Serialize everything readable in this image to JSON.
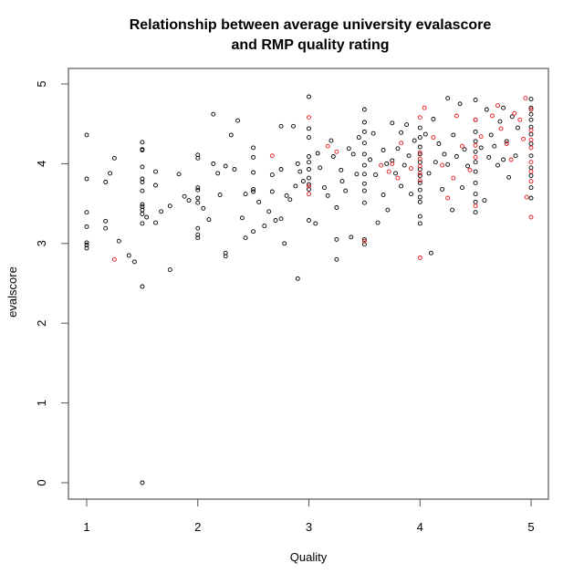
{
  "chart_data": {
    "type": "scatter",
    "title": "Relationship between average university evalascore\nand RMP quality rating",
    "title_lines": [
      "Relationship between average university evalascore",
      "and RMP quality rating"
    ],
    "xlabel": "Quality",
    "ylabel": "evalscore",
    "xlim": [
      0.85,
      5.15
    ],
    "ylim": [
      -0.2,
      5.2
    ],
    "xticks": [
      1,
      2,
      3,
      4,
      5
    ],
    "yticks": [
      0,
      1,
      2,
      3,
      4,
      5
    ],
    "grid": false,
    "legend": null,
    "marker": "open-circle",
    "colors": {
      "group_a": "#000000",
      "group_b": "#e8171b",
      "axis": "#555555"
    },
    "series": [
      {
        "name": "black",
        "color": "#000000",
        "points": [
          [
            1.0,
            4.36
          ],
          [
            1.0,
            3.81
          ],
          [
            1.0,
            3.39
          ],
          [
            1.0,
            3.21
          ],
          [
            1.0,
            3.01
          ],
          [
            1.0,
            2.98
          ],
          [
            1.0,
            2.94
          ],
          [
            1.17,
            3.77
          ],
          [
            1.17,
            3.28
          ],
          [
            1.17,
            3.19
          ],
          [
            1.21,
            3.88
          ],
          [
            1.25,
            4.07
          ],
          [
            1.29,
            3.03
          ],
          [
            1.38,
            2.85
          ],
          [
            1.43,
            2.77
          ],
          [
            1.5,
            4.27
          ],
          [
            1.5,
            4.18
          ],
          [
            1.5,
            4.17
          ],
          [
            1.5,
            3.96
          ],
          [
            1.5,
            3.81
          ],
          [
            1.5,
            3.77
          ],
          [
            1.5,
            3.66
          ],
          [
            1.5,
            3.49
          ],
          [
            1.5,
            3.46
          ],
          [
            1.5,
            3.42
          ],
          [
            1.5,
            3.37
          ],
          [
            1.5,
            3.25
          ],
          [
            1.5,
            2.46
          ],
          [
            1.5,
            0.0
          ],
          [
            1.54,
            3.33
          ],
          [
            1.62,
            3.9
          ],
          [
            1.62,
            3.73
          ],
          [
            1.62,
            3.26
          ],
          [
            1.67,
            3.4
          ],
          [
            1.75,
            3.47
          ],
          [
            1.75,
            2.67
          ],
          [
            1.83,
            3.87
          ],
          [
            1.88,
            3.59
          ],
          [
            1.92,
            3.54
          ],
          [
            2.0,
            4.11
          ],
          [
            2.0,
            4.07
          ],
          [
            2.0,
            3.7
          ],
          [
            2.0,
            3.67
          ],
          [
            2.0,
            3.57
          ],
          [
            2.0,
            3.51
          ],
          [
            2.0,
            3.19
          ],
          [
            2.0,
            3.11
          ],
          [
            2.0,
            3.07
          ],
          [
            2.05,
            3.44
          ],
          [
            2.1,
            3.3
          ],
          [
            2.14,
            4.62
          ],
          [
            2.14,
            4.0
          ],
          [
            2.18,
            3.88
          ],
          [
            2.2,
            3.61
          ],
          [
            2.25,
            3.97
          ],
          [
            2.25,
            2.88
          ],
          [
            2.25,
            2.84
          ],
          [
            2.3,
            4.36
          ],
          [
            2.33,
            3.93
          ],
          [
            2.36,
            4.54
          ],
          [
            2.4,
            3.32
          ],
          [
            2.43,
            3.62
          ],
          [
            2.43,
            3.07
          ],
          [
            2.5,
            4.2
          ],
          [
            2.5,
            4.08
          ],
          [
            2.5,
            3.89
          ],
          [
            2.5,
            3.68
          ],
          [
            2.5,
            3.65
          ],
          [
            2.5,
            3.15
          ],
          [
            2.55,
            3.52
          ],
          [
            2.6,
            3.22
          ],
          [
            2.64,
            3.4
          ],
          [
            2.67,
            3.86
          ],
          [
            2.67,
            3.65
          ],
          [
            2.7,
            3.29
          ],
          [
            2.75,
            4.47
          ],
          [
            2.75,
            3.93
          ],
          [
            2.75,
            3.31
          ],
          [
            2.78,
            3.0
          ],
          [
            2.8,
            3.6
          ],
          [
            2.83,
            3.55
          ],
          [
            2.86,
            4.47
          ],
          [
            2.88,
            3.72
          ],
          [
            2.9,
            4.0
          ],
          [
            2.9,
            2.56
          ],
          [
            2.92,
            3.9
          ],
          [
            2.95,
            3.78
          ],
          [
            3.0,
            4.84
          ],
          [
            3.0,
            4.44
          ],
          [
            3.0,
            4.33
          ],
          [
            3.0,
            4.09
          ],
          [
            3.0,
            4.02
          ],
          [
            3.0,
            3.93
          ],
          [
            3.0,
            3.82
          ],
          [
            3.0,
            3.74
          ],
          [
            3.0,
            3.68
          ],
          [
            3.0,
            3.29
          ],
          [
            3.06,
            3.25
          ],
          [
            3.08,
            4.13
          ],
          [
            3.1,
            3.95
          ],
          [
            3.14,
            3.7
          ],
          [
            3.17,
            3.6
          ],
          [
            3.2,
            4.29
          ],
          [
            3.22,
            4.09
          ],
          [
            3.25,
            3.45
          ],
          [
            3.25,
            3.05
          ],
          [
            3.25,
            2.8
          ],
          [
            3.29,
            3.92
          ],
          [
            3.3,
            3.78
          ],
          [
            3.33,
            3.66
          ],
          [
            3.36,
            4.19
          ],
          [
            3.38,
            3.08
          ],
          [
            3.4,
            4.12
          ],
          [
            3.43,
            3.87
          ],
          [
            3.45,
            4.33
          ],
          [
            3.5,
            4.68
          ],
          [
            3.5,
            4.52
          ],
          [
            3.5,
            4.4
          ],
          [
            3.5,
            4.26
          ],
          [
            3.5,
            4.12
          ],
          [
            3.5,
            3.98
          ],
          [
            3.5,
            3.87
          ],
          [
            3.5,
            3.75
          ],
          [
            3.5,
            3.66
          ],
          [
            3.5,
            3.51
          ],
          [
            3.5,
            3.05
          ],
          [
            3.5,
            2.99
          ],
          [
            3.55,
            4.05
          ],
          [
            3.58,
            4.38
          ],
          [
            3.6,
            3.86
          ],
          [
            3.62,
            3.26
          ],
          [
            3.67,
            4.17
          ],
          [
            3.67,
            3.61
          ],
          [
            3.7,
            4.0
          ],
          [
            3.71,
            3.42
          ],
          [
            3.75,
            4.51
          ],
          [
            3.75,
            4.04
          ],
          [
            3.78,
            3.88
          ],
          [
            3.8,
            4.19
          ],
          [
            3.83,
            4.39
          ],
          [
            3.83,
            3.72
          ],
          [
            3.86,
            3.98
          ],
          [
            3.88,
            4.49
          ],
          [
            3.9,
            4.1
          ],
          [
            3.92,
            3.62
          ],
          [
            3.95,
            4.29
          ],
          [
            4.0,
            4.45
          ],
          [
            4.0,
            4.33
          ],
          [
            4.0,
            4.21
          ],
          [
            4.0,
            4.12
          ],
          [
            4.0,
            4.02
          ],
          [
            4.0,
            3.93
          ],
          [
            4.0,
            3.85
          ],
          [
            4.0,
            3.76
          ],
          [
            4.0,
            3.67
          ],
          [
            4.0,
            3.58
          ],
          [
            4.0,
            3.52
          ],
          [
            4.0,
            3.34
          ],
          [
            4.0,
            3.25
          ],
          [
            4.05,
            4.37
          ],
          [
            4.08,
            3.88
          ],
          [
            4.1,
            2.88
          ],
          [
            4.12,
            4.56
          ],
          [
            4.14,
            4.02
          ],
          [
            4.17,
            4.25
          ],
          [
            4.2,
            3.68
          ],
          [
            4.22,
            4.12
          ],
          [
            4.25,
            4.82
          ],
          [
            4.25,
            3.99
          ],
          [
            4.29,
            3.42
          ],
          [
            4.3,
            4.36
          ],
          [
            4.33,
            4.09
          ],
          [
            4.36,
            4.75
          ],
          [
            4.38,
            3.7
          ],
          [
            4.4,
            4.18
          ],
          [
            4.43,
            3.97
          ],
          [
            4.5,
            4.8
          ],
          [
            4.5,
            4.55
          ],
          [
            4.5,
            4.4
          ],
          [
            4.5,
            4.28
          ],
          [
            4.5,
            4.15
          ],
          [
            4.5,
            4.02
          ],
          [
            4.5,
            3.9
          ],
          [
            4.5,
            3.76
          ],
          [
            4.5,
            3.62
          ],
          [
            4.5,
            3.52
          ],
          [
            4.5,
            3.39
          ],
          [
            4.55,
            4.2
          ],
          [
            4.58,
            3.54
          ],
          [
            4.6,
            4.68
          ],
          [
            4.62,
            4.08
          ],
          [
            4.64,
            4.36
          ],
          [
            4.67,
            4.22
          ],
          [
            4.7,
            3.98
          ],
          [
            4.72,
            4.53
          ],
          [
            4.75,
            4.7
          ],
          [
            4.75,
            4.05
          ],
          [
            4.78,
            4.28
          ],
          [
            4.8,
            3.83
          ],
          [
            4.83,
            4.59
          ],
          [
            4.86,
            4.1
          ],
          [
            4.88,
            4.45
          ],
          [
            5.0,
            4.81
          ],
          [
            5.0,
            4.7
          ],
          [
            5.0,
            4.62
          ],
          [
            5.0,
            4.55
          ],
          [
            5.0,
            4.46
          ],
          [
            5.0,
            4.37
          ],
          [
            5.0,
            4.25
          ],
          [
            5.0,
            4.1
          ],
          [
            5.0,
            3.95
          ],
          [
            5.0,
            3.85
          ],
          [
            5.0,
            3.7
          ],
          [
            5.0,
            3.57
          ]
        ]
      },
      {
        "name": "red",
        "color": "#e8171b",
        "points": [
          [
            1.25,
            2.8
          ],
          [
            2.67,
            4.1
          ],
          [
            3.0,
            4.58
          ],
          [
            3.0,
            3.72
          ],
          [
            3.0,
            3.62
          ],
          [
            3.17,
            4.22
          ],
          [
            3.25,
            4.15
          ],
          [
            3.5,
            3.03
          ],
          [
            3.65,
            3.98
          ],
          [
            3.72,
            3.9
          ],
          [
            3.75,
            4.0
          ],
          [
            3.8,
            3.82
          ],
          [
            3.83,
            4.26
          ],
          [
            3.92,
            3.94
          ],
          [
            4.0,
            4.58
          ],
          [
            4.0,
            4.14
          ],
          [
            4.0,
            4.06
          ],
          [
            4.0,
            3.97
          ],
          [
            4.0,
            3.88
          ],
          [
            4.0,
            3.79
          ],
          [
            4.0,
            2.82
          ],
          [
            4.04,
            4.7
          ],
          [
            4.12,
            4.33
          ],
          [
            4.2,
            3.98
          ],
          [
            4.25,
            3.57
          ],
          [
            4.3,
            3.82
          ],
          [
            4.33,
            4.6
          ],
          [
            4.38,
            4.22
          ],
          [
            4.45,
            3.92
          ],
          [
            4.5,
            4.55
          ],
          [
            4.5,
            4.23
          ],
          [
            4.5,
            4.08
          ],
          [
            4.5,
            3.47
          ],
          [
            4.55,
            4.34
          ],
          [
            4.65,
            4.6
          ],
          [
            4.7,
            4.73
          ],
          [
            4.73,
            4.44
          ],
          [
            4.78,
            4.25
          ],
          [
            4.82,
            4.05
          ],
          [
            4.85,
            4.63
          ],
          [
            4.9,
            4.55
          ],
          [
            4.93,
            4.31
          ],
          [
            4.95,
            4.82
          ],
          [
            4.96,
            3.58
          ],
          [
            5.0,
            4.68
          ],
          [
            5.0,
            4.42
          ],
          [
            5.0,
            4.3
          ],
          [
            5.0,
            4.2
          ],
          [
            5.0,
            4.02
          ],
          [
            5.0,
            3.9
          ],
          [
            5.0,
            3.78
          ],
          [
            5.0,
            3.33
          ]
        ]
      }
    ]
  }
}
